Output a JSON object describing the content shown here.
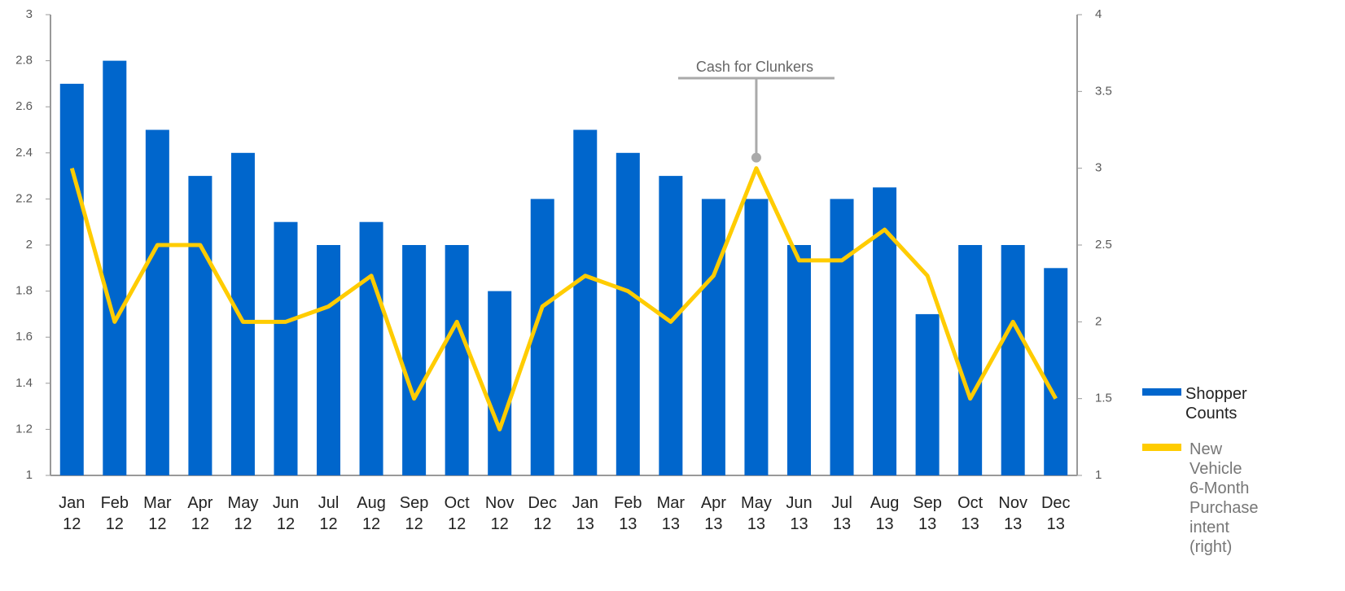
{
  "chart_data": {
    "type": "bar_line",
    "categories": [
      "Jan 12",
      "Feb 12",
      "Mar 12",
      "Apr 12",
      "May 12",
      "Jun 12",
      "Jul 12",
      "Aug 12",
      "Sep 12",
      "Oct 12",
      "Nov 12",
      "Dec 12",
      "Jan 13",
      "Feb 13",
      "Mar 13",
      "Apr 13",
      "May 13",
      "Jun 13",
      "Jul 13",
      "Aug 13",
      "Sep 13",
      "Oct 13",
      "Nov 13",
      "Dec 13"
    ],
    "series": [
      {
        "name": "Shopper Counts",
        "color": "#0066cc",
        "type": "bar",
        "values": [
          2.7,
          2.8,
          2.5,
          2.3,
          2.4,
          2.1,
          2.0,
          2.1,
          2.0,
          2.0,
          1.8,
          2.2,
          2.5,
          2.4,
          2.3,
          2.2,
          2.2,
          2.0,
          2.2,
          2.25,
          1.7,
          2.0,
          2.0,
          1.9
        ]
      },
      {
        "name": "New Vehicle 6-Month Purchase intent (right)",
        "color": "#ffcc00",
        "type": "line",
        "axis": "y2",
        "values": [
          3.0,
          2.0,
          2.5,
          2.5,
          2.0,
          2.0,
          2.1,
          2.3,
          1.5,
          2.0,
          1.3,
          2.1,
          2.3,
          2.2,
          2.0,
          2.3,
          3.0,
          2.4,
          2.4,
          2.6,
          2.3,
          1.5,
          2.0,
          1.5
        ]
      }
    ],
    "ylim": [
      1,
      3
    ],
    "yticks": [
      1,
      1.2,
      1.4,
      1.6,
      1.8,
      2,
      2.2,
      2.4,
      2.6,
      2.8,
      3
    ],
    "y2lim": [
      1,
      4
    ],
    "y2ticks": [
      1,
      1.5,
      2,
      2.5,
      3,
      3.5,
      4
    ],
    "annotations": [
      {
        "text": "Cash for Clunkers",
        "category": "May 13"
      }
    ],
    "grid": false
  }
}
